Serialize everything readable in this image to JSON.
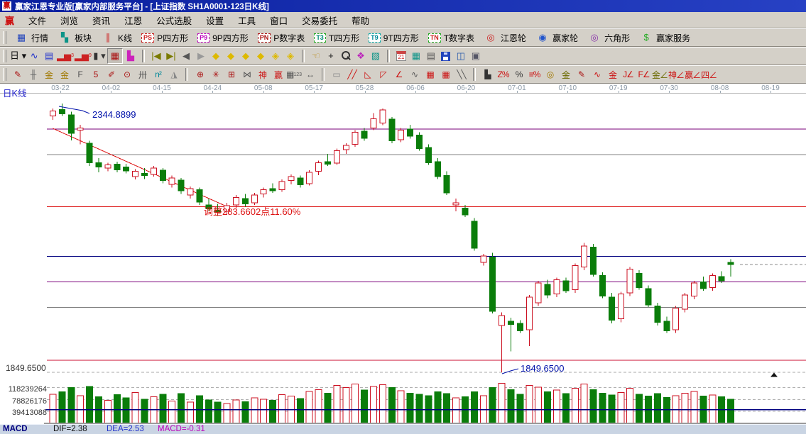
{
  "window": {
    "title": "赢家江恩专业版[赢家内部服务平台] - [上证指数  SH1A0001-123日K线]",
    "app_icon": "赢"
  },
  "menu_bar": {
    "icon": "赢",
    "items": [
      "文件",
      "浏览",
      "资讯",
      "江恩",
      "公式选股",
      "设置",
      "工具",
      "窗口",
      "交易委托",
      "帮助"
    ]
  },
  "feature_toolbar": [
    {
      "name": "quotes",
      "glyph": "▦",
      "color": "#2244bb",
      "label": "行情"
    },
    {
      "name": "sectors",
      "glyph": "▚",
      "color": "#0d9488",
      "label": "板块"
    },
    {
      "name": "kline",
      "glyph": "∥",
      "color": "#cc2222",
      "label": "K线"
    },
    {
      "name": "p-square",
      "badge": "PS",
      "color": "#cc2222",
      "border": "#cc2222",
      "label": "P四方形"
    },
    {
      "name": "9p-square",
      "badge": "P9",
      "color": "#bb00bb",
      "border": "#bb00bb",
      "label": "9P四方形"
    },
    {
      "name": "p-number-table",
      "badge": "PN",
      "color": "#aa1111",
      "border": "#aa1111",
      "label": "P数字表"
    },
    {
      "name": "t-square",
      "badge": "T3",
      "color": "#008877",
      "border": "#22aa22",
      "label": "T四方形"
    },
    {
      "name": "9t-square",
      "badge": "T9",
      "color": "#008899",
      "border": "#00aaaa",
      "label": "9T四方形"
    },
    {
      "name": "t-number-table",
      "badge": "TN",
      "color": "#cc2222",
      "border": "#22aa22",
      "label": "T数字表"
    },
    {
      "name": "gann-wheel",
      "glyph": "◎",
      "color": "#cc2222",
      "label": "江恩轮"
    },
    {
      "name": "winner-wheel",
      "glyph": "◉",
      "color": "#2255cc",
      "label": "赢家轮"
    },
    {
      "name": "hexagon",
      "glyph": "◎",
      "color": "#8833aa",
      "label": "六角形"
    },
    {
      "name": "winner-service",
      "glyph": "$",
      "color": "#22aa22",
      "label": "赢家服务"
    }
  ],
  "tool_row": [
    {
      "name": "period-day-dropdown",
      "glyph": "日 ▾",
      "color": "#111111"
    },
    {
      "name": "trend-curve",
      "glyph": "∿",
      "color": "#2233cc"
    },
    {
      "name": "info-panel",
      "glyph": "▤",
      "color": "#2233cc"
    },
    {
      "name": "p3-cycle",
      "glyph": "▂▅",
      "color": "#cc2222",
      "sub": "3"
    },
    {
      "name": "p9-cycle",
      "glyph": "▂▅",
      "color": "#cc2222",
      "sub": "9"
    },
    {
      "name": "candle-style-dropdown",
      "glyph": "▮ ▾",
      "color": "#333333"
    },
    {
      "name": "gann-grid-toggle",
      "glyph": "▦",
      "color": "#aa1111",
      "pressed": true
    },
    {
      "name": "color-histogram",
      "glyph": "▙",
      "color": "#cc22bb"
    },
    {
      "sep": true
    },
    {
      "name": "first-bar",
      "glyph": "|◀",
      "color": "#7a7a00"
    },
    {
      "name": "last-bar",
      "glyph": "▶|",
      "color": "#7a7a00"
    },
    {
      "name": "prev-bar",
      "glyph": "◀",
      "color": "#555555"
    },
    {
      "name": "next-bar",
      "glyph": "▶",
      "color": "#999999"
    },
    {
      "name": "gann-diamond-left",
      "glyph": "◆",
      "color": "#ddb900"
    },
    {
      "name": "gann-diamond-right",
      "glyph": "◆",
      "color": "#ddb900"
    },
    {
      "name": "gann-diamond-expand",
      "glyph": "◆",
      "color": "#ddb900"
    },
    {
      "name": "gann-diamond-contract",
      "glyph": "◆",
      "color": "#ddb900"
    },
    {
      "name": "gann-diamond-star",
      "glyph": "◈",
      "color": "#ddb900"
    },
    {
      "name": "gann-diamond-cross",
      "glyph": "◈",
      "color": "#ddb900"
    },
    {
      "sep": true
    },
    {
      "name": "hand-tool",
      "glyph": "☜",
      "color": "#b8860b"
    },
    {
      "name": "crosshair-tool",
      "glyph": "+",
      "color": "#222222"
    },
    {
      "name": "zoom-tool",
      "css": "mag"
    },
    {
      "name": "gann-flower",
      "glyph": "❖",
      "color": "#bb22bb"
    },
    {
      "name": "cycle-chart",
      "glyph": "▧",
      "color": "#0d9488"
    },
    {
      "sep": true
    },
    {
      "name": "calendar-21",
      "css": "cal",
      "text": "21"
    },
    {
      "name": "matrix-table",
      "glyph": "▦",
      "color": "#0d9488"
    },
    {
      "name": "session-notes",
      "glyph": "▤",
      "color": "#555555"
    },
    {
      "name": "save-layout",
      "css": "flp"
    },
    {
      "name": "export-data",
      "glyph": "◫",
      "color": "#2255aa"
    },
    {
      "name": "network-pc",
      "glyph": "▣",
      "color": "#555566"
    }
  ],
  "draw_row": [
    {
      "name": "brush-tool",
      "glyph": "✎",
      "color": "#aa1111"
    },
    {
      "name": "grid-ruler",
      "glyph": "╫",
      "color": "#666666"
    },
    {
      "name": "gold-grid-a",
      "glyph": "金",
      "color": "#a07800"
    },
    {
      "name": "gold-grid-b",
      "glyph": "金",
      "color": "#a07800"
    },
    {
      "name": "f-grid",
      "glyph": "F",
      "color": "#555555"
    },
    {
      "name": "five-segment-grid",
      "glyph": "5",
      "color": "#aa1111"
    },
    {
      "name": "marker-pen",
      "glyph": "✐",
      "color": "#aa1111"
    },
    {
      "name": "time-circle",
      "glyph": "⊙",
      "color": "#aa1111"
    },
    {
      "name": "bar-ruler",
      "glyph": "卅",
      "color": "#555555"
    },
    {
      "name": "n-square",
      "glyph": "n²",
      "color": "#008899"
    },
    {
      "name": "angle-measure",
      "glyph": "◮",
      "color": "#888888"
    },
    {
      "sep": true
    },
    {
      "name": "compass-target",
      "glyph": "⊕",
      "color": "#aa1111"
    },
    {
      "name": "radial-star",
      "glyph": "✳",
      "color": "#aa1111"
    },
    {
      "name": "grid-web",
      "glyph": "⊞",
      "color": "#aa1111"
    },
    {
      "name": "k-notch",
      "glyph": "⋈",
      "color": "#555555"
    },
    {
      "name": "shen-grid",
      "glyph": "神",
      "color": "#cc1111"
    },
    {
      "name": "ying-grid",
      "glyph": "赢",
      "color": "#cc1111"
    },
    {
      "name": "ruler-123",
      "glyph": "▦",
      "color": "#555555",
      "sub": "123"
    },
    {
      "name": "h-range",
      "glyph": "↔",
      "color": "#555555"
    },
    {
      "sep": true
    },
    {
      "name": "rect-tool",
      "glyph": "▭",
      "color": "#888888"
    },
    {
      "name": "gann-fan-a",
      "glyph": "╱╱",
      "color": "#cc1111"
    },
    {
      "name": "gann-fan-b",
      "glyph": "◺",
      "color": "#cc1111"
    },
    {
      "name": "gann-fan-c",
      "glyph": "◸",
      "color": "#cc1111"
    },
    {
      "name": "speed-lines",
      "glyph": "∠",
      "color": "#cc1111"
    },
    {
      "name": "zigzag-tool",
      "glyph": "∿",
      "color": "#555555"
    },
    {
      "name": "red-grid-a",
      "glyph": "▦",
      "color": "#cc1111"
    },
    {
      "name": "red-grid-b",
      "glyph": "▦",
      "color": "#cc1111"
    },
    {
      "name": "parallel-lines",
      "glyph": "╲╲",
      "color": "#555555"
    },
    {
      "sep": true
    },
    {
      "name": "level-stack",
      "glyph": "▙",
      "color": "#333333"
    },
    {
      "name": "zone-percent",
      "glyph": "Z%",
      "color": "#cc1111"
    },
    {
      "name": "percent-mark",
      "glyph": "%",
      "color": "#333333"
    },
    {
      "name": "percent-levels",
      "glyph": "≡%",
      "color": "#cc1111"
    },
    {
      "name": "gold-section-circle",
      "glyph": "◎",
      "color": "#a07800"
    },
    {
      "name": "gold-levels",
      "glyph": "金",
      "color": "#6b6b00"
    },
    {
      "name": "annotate-pen",
      "glyph": "✎",
      "color": "#aa1111"
    },
    {
      "name": "gold-wave",
      "glyph": "∿",
      "color": "#cc1111"
    },
    {
      "name": "gold-line",
      "glyph": "金",
      "color": "#cc1111"
    },
    {
      "name": "angle-j",
      "glyph": "J∠",
      "color": "#cc1111"
    },
    {
      "name": "angle-f",
      "glyph": "F∠",
      "color": "#cc1111"
    },
    {
      "name": "angle-gold",
      "glyph": "金∠",
      "color": "#6b6b00"
    },
    {
      "name": "angle-shen",
      "glyph": "神∠",
      "color": "#cc1111"
    },
    {
      "name": "angle-ying",
      "glyph": "赢∠",
      "color": "#cc1111"
    },
    {
      "name": "angle-si",
      "glyph": "四∠",
      "color": "#cc1111"
    }
  ],
  "date_axis": {
    "period_label": "日K线",
    "labels": [
      "03-22",
      "04-02",
      "04-15",
      "04-24",
      "05-08",
      "05-17",
      "05-28",
      "06-06",
      "06-20",
      "07-01",
      "07-10",
      "07-19",
      "07-30",
      "08-08",
      "08-19"
    ]
  },
  "chart_data": {
    "type": "candlestick",
    "symbol": "上证指数 SH1A0001",
    "period": "123日K线",
    "annotations": {
      "peak_price": "2344.8899",
      "retracement": "调整283.6602点11.60%",
      "trough_price": "1849.6500",
      "trough_axis_price": "1849.6500"
    },
    "volume_axis_labels": [
      "118239264",
      "78826176",
      "39413088"
    ],
    "colors": {
      "up": "#cc1122",
      "down": "#0a7d0a",
      "annotation_blue": "#0011aa",
      "annotation_red": "#dd1111"
    },
    "levels": [
      {
        "price": 2298,
        "color": "#7a007a"
      },
      {
        "price": 2251,
        "color": "#808080"
      },
      {
        "price": 2155,
        "color": "#dd1111"
      },
      {
        "price": 2063,
        "color": "#000080"
      },
      {
        "price": 2016,
        "color": "#7a007a"
      },
      {
        "price": 1969,
        "color": "#808080"
      },
      {
        "price": 1872,
        "color": "#cc1133"
      },
      {
        "price": 1849.65,
        "color": "#aaaaaa",
        "dashed": true
      }
    ],
    "trendline": {
      "from_index": 0,
      "from_price": 2299,
      "to_index": 19,
      "to_price": 2155,
      "color": "#dd1111"
    },
    "last_close_level": 2048,
    "volume_ma": 45000000,
    "marker_triangle_price": 1845,
    "candles": [
      [
        2322,
        2336,
        2315,
        2331,
        96000000
      ],
      [
        2334,
        2344.89,
        2322,
        2326,
        104000000
      ],
      [
        2324,
        2330,
        2277,
        2290,
        118000000
      ],
      [
        2296,
        2306,
        2270,
        2300,
        92000000
      ],
      [
        2272,
        2276,
        2230,
        2236,
        122000000
      ],
      [
        2236,
        2244,
        2218,
        2228,
        88000000
      ],
      [
        2226,
        2236,
        2220,
        2232,
        76000000
      ],
      [
        2233,
        2238,
        2218,
        2223,
        95000000
      ],
      [
        2228,
        2234,
        2216,
        2221,
        84000000
      ],
      [
        2210,
        2224,
        2205,
        2220,
        102000000
      ],
      [
        2216,
        2226,
        2206,
        2212,
        80000000
      ],
      [
        2214,
        2230,
        2210,
        2226,
        88000000
      ],
      [
        2222,
        2226,
        2198,
        2203,
        96000000
      ],
      [
        2196,
        2212,
        2190,
        2208,
        74000000
      ],
      [
        2204,
        2208,
        2178,
        2184,
        98000000
      ],
      [
        2176,
        2192,
        2170,
        2188,
        70000000
      ],
      [
        2186,
        2190,
        2158,
        2163,
        92000000
      ],
      [
        2158,
        2170,
        2146,
        2151,
        78000000
      ],
      [
        2148,
        2160,
        2138,
        2144,
        70000000
      ],
      [
        2146,
        2162,
        2140,
        2157,
        66000000
      ],
      [
        2158,
        2176,
        2152,
        2172,
        78000000
      ],
      [
        2170,
        2178,
        2155,
        2160,
        72000000
      ],
      [
        2162,
        2180,
        2158,
        2176,
        84000000
      ],
      [
        2178,
        2190,
        2172,
        2186,
        80000000
      ],
      [
        2188,
        2198,
        2180,
        2184,
        76000000
      ],
      [
        2186,
        2205,
        2182,
        2201,
        95000000
      ],
      [
        2203,
        2214,
        2196,
        2210,
        90000000
      ],
      [
        2208,
        2212,
        2190,
        2195,
        82000000
      ],
      [
        2197,
        2222,
        2194,
        2218,
        105000000
      ],
      [
        2220,
        2240,
        2213,
        2236,
        112000000
      ],
      [
        2238,
        2252,
        2230,
        2233,
        100000000
      ],
      [
        2235,
        2262,
        2232,
        2258,
        125000000
      ],
      [
        2260,
        2272,
        2252,
        2268,
        118000000
      ],
      [
        2270,
        2296,
        2265,
        2292,
        130000000
      ],
      [
        2294,
        2300,
        2276,
        2281,
        110000000
      ],
      [
        2300,
        2327,
        2296,
        2317,
        122000000
      ],
      [
        2309,
        2336,
        2305,
        2333,
        128000000
      ],
      [
        2316,
        2320,
        2272,
        2276,
        118000000
      ],
      [
        2278,
        2300,
        2274,
        2296,
        108000000
      ],
      [
        2298,
        2306,
        2280,
        2285,
        100000000
      ],
      [
        2287,
        2292,
        2258,
        2262,
        96000000
      ],
      [
        2264,
        2270,
        2232,
        2236,
        92000000
      ],
      [
        2238,
        2244,
        2206,
        2210,
        104000000
      ],
      [
        2212,
        2220,
        2176,
        2180,
        98000000
      ],
      [
        2158,
        2170,
        2146,
        2162,
        84000000
      ],
      [
        2152,
        2158,
        2136,
        2140,
        88000000
      ],
      [
        2128,
        2134,
        2074,
        2078,
        104000000
      ],
      [
        2052,
        2068,
        2046,
        2064,
        92000000
      ],
      [
        2062,
        2070,
        1958,
        1962,
        118000000
      ],
      [
        1936,
        1960,
        1849.65,
        1954,
        132000000
      ],
      [
        1944,
        1950,
        1888,
        1938,
        112000000
      ],
      [
        1940,
        1946,
        1922,
        1926,
        96000000
      ],
      [
        1928,
        1992,
        1898,
        1988,
        126000000
      ],
      [
        1978,
        2018,
        1972,
        2014,
        120000000
      ],
      [
        2012,
        2020,
        1986,
        1992,
        104000000
      ],
      [
        1994,
        2024,
        1988,
        2020,
        110000000
      ],
      [
        2018,
        2024,
        1996,
        2000,
        98000000
      ],
      [
        2002,
        2050,
        1996,
        2046,
        116000000
      ],
      [
        2044,
        2088,
        2038,
        2082,
        130000000
      ],
      [
        2080,
        2086,
        2026,
        2030,
        112000000
      ],
      [
        2028,
        2034,
        1986,
        1990,
        100000000
      ],
      [
        1988,
        1996,
        1940,
        1946,
        94000000
      ],
      [
        1948,
        1998,
        1942,
        1994,
        102000000
      ],
      [
        1996,
        2044,
        1990,
        2040,
        116000000
      ],
      [
        2032,
        2038,
        2002,
        2006,
        96000000
      ],
      [
        2004,
        2010,
        1970,
        1974,
        90000000
      ],
      [
        1972,
        1978,
        1936,
        1942,
        98000000
      ],
      [
        1944,
        1952,
        1922,
        1926,
        86000000
      ],
      [
        1928,
        1972,
        1922,
        1968,
        92000000
      ],
      [
        1966,
        1996,
        1960,
        1992,
        100000000
      ],
      [
        1990,
        2018,
        1984,
        2014,
        106000000
      ],
      [
        2016,
        2026,
        2000,
        2004,
        90000000
      ],
      [
        2006,
        2032,
        2000,
        2028,
        94000000
      ],
      [
        2026,
        2036,
        2014,
        2018,
        88000000
      ],
      [
        2052,
        2058,
        2026,
        2048,
        80000000
      ]
    ]
  },
  "status_bar": {
    "indicator": "MACD",
    "items": [
      {
        "text": "DIF=2.38",
        "color": "#111111"
      },
      {
        "text": "DEA=2.53",
        "color": "#2233cc"
      },
      {
        "text": "MACD=-0.31",
        "color": "#bb00bb"
      }
    ]
  }
}
